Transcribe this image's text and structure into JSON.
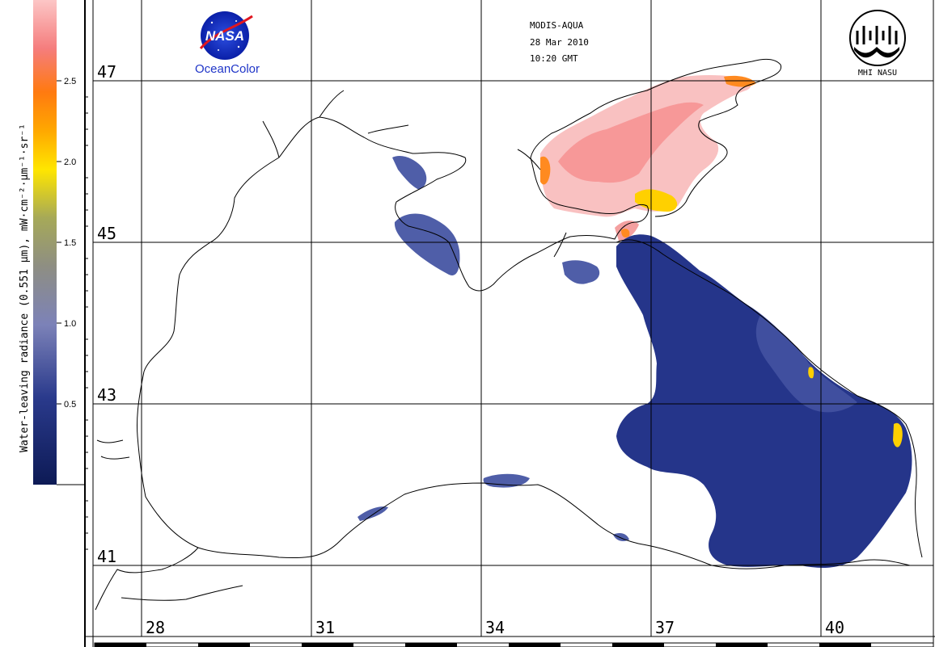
{
  "map": {
    "colorbar": {
      "label": "Water-leaving radiance (0.551 µm), mW·cm⁻²·µm⁻¹·sr⁻¹",
      "ticks": [
        "2.5",
        "2.0",
        "1.5",
        "1.0",
        "0.5"
      ],
      "stops": [
        "#0d1a55",
        "#1f2f86",
        "#4b5ca8",
        "#8b8fbd",
        "#8f8f7e",
        "#9ea35a",
        "#d8d22b",
        "#ffe600",
        "#ffb000",
        "#ff7a00",
        "#f56a4a",
        "#f59a9a",
        "#fbc0c0"
      ]
    },
    "lat_labels": [
      "47",
      "45",
      "43",
      "41"
    ],
    "lon_labels": [
      "28",
      "31",
      "34",
      "37",
      "40"
    ],
    "header": {
      "line1": "MODIS-AQUA",
      "line2": "28 Mar 2010",
      "line3": "10:20 GMT"
    },
    "logo_nasa": {
      "text": "NASA",
      "subtitle": "OceanColor"
    },
    "logo_mhi": {
      "text": "MHI NASU"
    },
    "colors": {
      "deep_water": "#243586",
      "mid_water": "#4d5ba3",
      "high_radiance": "#f6a0a0",
      "very_high": "#ffd200",
      "coast": "#000000",
      "grid": "#000000"
    }
  }
}
